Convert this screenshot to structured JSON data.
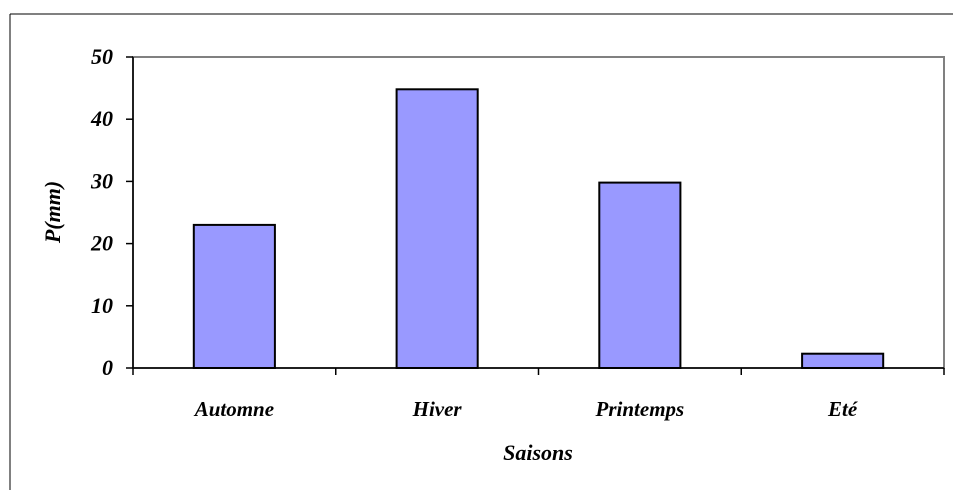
{
  "chart_data": {
    "type": "bar",
    "categories": [
      "Automne",
      "Hiver",
      "Printemps",
      "Eté"
    ],
    "values": [
      23,
      44.8,
      29.8,
      2.3
    ],
    "xlabel": "Saisons",
    "ylabel": "P(mm)",
    "ylim": [
      0,
      50
    ],
    "yticks": [
      "0",
      "10",
      "20",
      "30",
      "40",
      "50"
    ],
    "grid": false,
    "legend": "none",
    "colors": {
      "bar_fill": "#9999FF",
      "bar_stroke": "#000000",
      "plot_border": "#808080",
      "axis": "#000000"
    }
  }
}
